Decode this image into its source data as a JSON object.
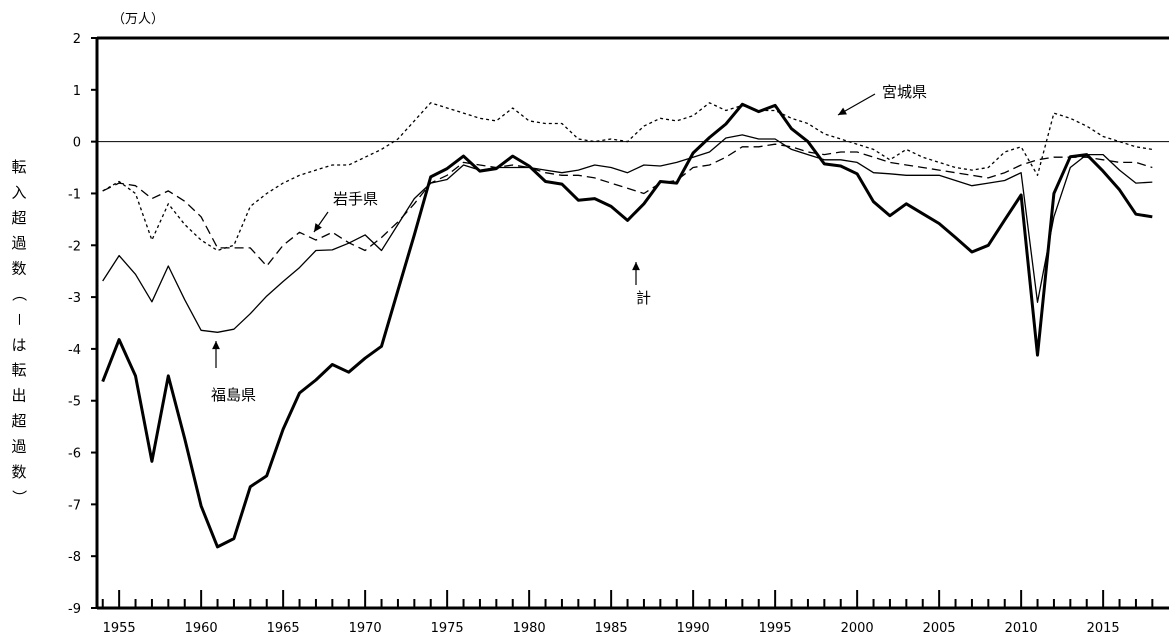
{
  "chart_data": {
    "type": "line",
    "title": "",
    "unit_label": "（万人）",
    "ylabel": "転入超過数（－は転出超過数）",
    "xlabel": "",
    "xlim": [
      1954,
      2018
    ],
    "ylim": [
      -9,
      2
    ],
    "x_ticks": [
      1955,
      1960,
      1965,
      1970,
      1975,
      1980,
      1985,
      1990,
      1995,
      2000,
      2005,
      2010,
      2015
    ],
    "y_ticks": [
      2,
      1,
      0,
      -1,
      -2,
      -3,
      -4,
      -5,
      -6,
      -7,
      -8,
      -9
    ],
    "grid": false,
    "zero_line": true,
    "x": [
      1954,
      1955,
      1956,
      1957,
      1958,
      1959,
      1960,
      1961,
      1962,
      1963,
      1964,
      1965,
      1966,
      1967,
      1968,
      1969,
      1970,
      1971,
      1972,
      1973,
      1974,
      1975,
      1976,
      1977,
      1978,
      1979,
      1980,
      1981,
      1982,
      1983,
      1984,
      1985,
      1986,
      1987,
      1988,
      1989,
      1990,
      1991,
      1992,
      1993,
      1994,
      1995,
      1996,
      1997,
      1998,
      1999,
      2000,
      2001,
      2002,
      2003,
      2004,
      2005,
      2006,
      2007,
      2008,
      2009,
      2010,
      2011,
      2012,
      2013,
      2014,
      2015,
      2016,
      2017,
      2018
    ],
    "series": [
      {
        "name": "計",
        "style": "thick-solid",
        "color": "#000000",
        "values": [
          -4.63,
          -3.82,
          -4.52,
          -6.17,
          -4.52,
          -5.73,
          -7.03,
          -7.82,
          -7.66,
          -6.66,
          -6.45,
          -5.55,
          -4.85,
          -4.6,
          -4.3,
          -4.45,
          -4.18,
          -3.95,
          -2.87,
          -1.8,
          -0.68,
          -0.52,
          -0.28,
          -0.57,
          -0.52,
          -0.28,
          -0.47,
          -0.77,
          -0.82,
          -1.13,
          -1.1,
          -1.25,
          -1.52,
          -1.2,
          -0.77,
          -0.8,
          -0.22,
          0.08,
          0.34,
          0.72,
          0.58,
          0.7,
          0.25,
          0.0,
          -0.43,
          -0.47,
          -0.62,
          -1.16,
          -1.43,
          -1.2,
          -1.39,
          -1.58,
          -1.85,
          -2.13,
          -2.0,
          -1.51,
          -1.03,
          -4.12,
          -1.0,
          -0.29,
          -0.25,
          -0.57,
          -0.93,
          -1.4,
          -1.45
        ]
      },
      {
        "name": "福島県",
        "style": "thin-solid",
        "color": "#000000",
        "values": [
          -2.69,
          -2.2,
          -2.56,
          -3.09,
          -2.4,
          -3.05,
          -3.64,
          -3.68,
          -3.62,
          -3.32,
          -2.98,
          -2.7,
          -2.43,
          -2.1,
          -2.09,
          -1.96,
          -1.8,
          -2.1,
          -1.6,
          -1.1,
          -0.8,
          -0.73,
          -0.45,
          -0.55,
          -0.5,
          -0.5,
          -0.5,
          -0.55,
          -0.6,
          -0.55,
          -0.45,
          -0.5,
          -0.6,
          -0.45,
          -0.47,
          -0.4,
          -0.3,
          -0.2,
          0.07,
          0.13,
          0.05,
          0.05,
          -0.15,
          -0.25,
          -0.35,
          -0.35,
          -0.4,
          -0.6,
          -0.62,
          -0.65,
          -0.65,
          -0.65,
          -0.75,
          -0.85,
          -0.8,
          -0.75,
          -0.6,
          -3.1,
          -1.45,
          -0.5,
          -0.25,
          -0.25,
          -0.55,
          -0.8,
          -0.78
        ]
      },
      {
        "name": "岩手県",
        "style": "dashed",
        "color": "#000000",
        "values": [
          -0.95,
          -0.8,
          -0.85,
          -1.1,
          -0.95,
          -1.15,
          -1.45,
          -2.05,
          -2.05,
          -2.05,
          -2.4,
          -2.0,
          -1.75,
          -1.9,
          -1.75,
          -1.95,
          -2.1,
          -1.85,
          -1.55,
          -1.2,
          -0.8,
          -0.65,
          -0.4,
          -0.45,
          -0.5,
          -0.45,
          -0.5,
          -0.6,
          -0.65,
          -0.65,
          -0.7,
          -0.8,
          -0.9,
          -1.0,
          -0.8,
          -0.75,
          -0.5,
          -0.45,
          -0.3,
          -0.1,
          -0.1,
          -0.05,
          -0.1,
          -0.2,
          -0.25,
          -0.2,
          -0.2,
          -0.3,
          -0.4,
          -0.45,
          -0.5,
          -0.55,
          -0.6,
          -0.65,
          -0.7,
          -0.6,
          -0.45,
          -0.35,
          -0.3,
          -0.3,
          -0.3,
          -0.35,
          -0.4,
          -0.4,
          -0.5
        ]
      },
      {
        "name": "宮城県",
        "style": "dotted",
        "color": "#000000",
        "values": [
          -0.95,
          -0.77,
          -1.0,
          -1.9,
          -1.2,
          -1.6,
          -1.9,
          -2.1,
          -2.0,
          -1.25,
          -1.0,
          -0.8,
          -0.65,
          -0.55,
          -0.45,
          -0.45,
          -0.3,
          -0.15,
          0.05,
          0.4,
          0.75,
          0.65,
          0.55,
          0.45,
          0.4,
          0.65,
          0.4,
          0.35,
          0.35,
          0.05,
          0.0,
          0.05,
          0.0,
          0.3,
          0.45,
          0.4,
          0.5,
          0.75,
          0.6,
          0.7,
          0.6,
          0.6,
          0.45,
          0.35,
          0.15,
          0.05,
          -0.05,
          -0.15,
          -0.35,
          -0.15,
          -0.3,
          -0.4,
          -0.5,
          -0.55,
          -0.5,
          -0.2,
          -0.1,
          -0.65,
          0.55,
          0.45,
          0.3,
          0.1,
          0.0,
          -0.1,
          -0.15
        ]
      }
    ],
    "annotations": [
      {
        "text": "宮城県",
        "series": "宮城県"
      },
      {
        "text": "岩手県",
        "series": "岩手県"
      },
      {
        "text": "計",
        "series": "計"
      },
      {
        "text": "福島県",
        "series": "福島県"
      }
    ]
  }
}
